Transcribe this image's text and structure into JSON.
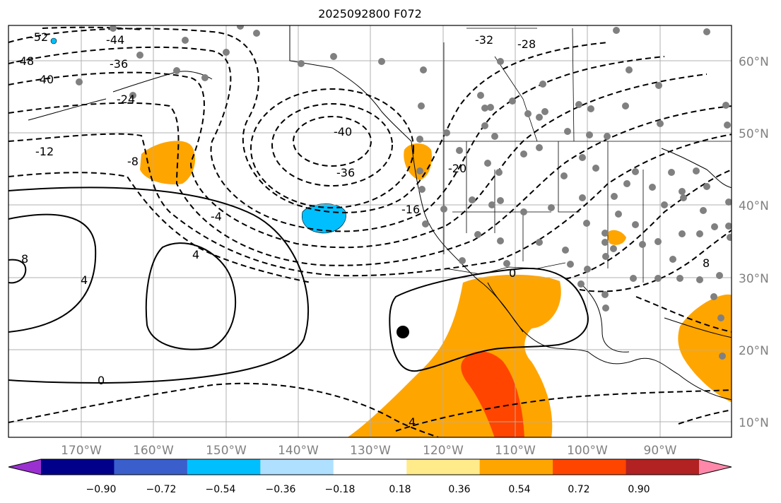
{
  "title": "2025092800 F072",
  "lat_labels": [
    "60°N",
    "50°N",
    "40°N",
    "30°N",
    "20°N",
    "10°N"
  ],
  "lon_labels": [
    "170°W",
    "160°W",
    "150°W",
    "140°W",
    "130°W",
    "120°W",
    "110°W",
    "100°W",
    "90°W"
  ],
  "colorbar": {
    "ticks": [
      "−0.90",
      "−0.72",
      "−0.54",
      "−0.36",
      "−0.18",
      "0.18",
      "0.36",
      "0.54",
      "0.72",
      "0.90"
    ],
    "colors": [
      "#9b30d0",
      "#00008b",
      "#3a5fcd",
      "#00bfff",
      "#b0e0ff",
      "#ffffff",
      "#ffeb8a",
      "#ffa500",
      "#ff4500",
      "#b22222",
      "#ff88aa"
    ]
  },
  "contour_labels": {
    "dashed": [
      "-52",
      "-48",
      "-44",
      "-40",
      "-36",
      "-32",
      "-28",
      "-24",
      "-20",
      "-16",
      "-12",
      "-8",
      "-4",
      "-40",
      "-36"
    ],
    "solid": [
      "0",
      "4",
      "4",
      "4",
      "8",
      "0",
      "8"
    ]
  },
  "colors": {
    "land_outline": "#000000",
    "grid": "#b0b0b0",
    "fill_positive": "#ffa500",
    "fill_strong": "#ff4500",
    "fill_negative": "#00bfff",
    "station_dot": "#808080"
  }
}
